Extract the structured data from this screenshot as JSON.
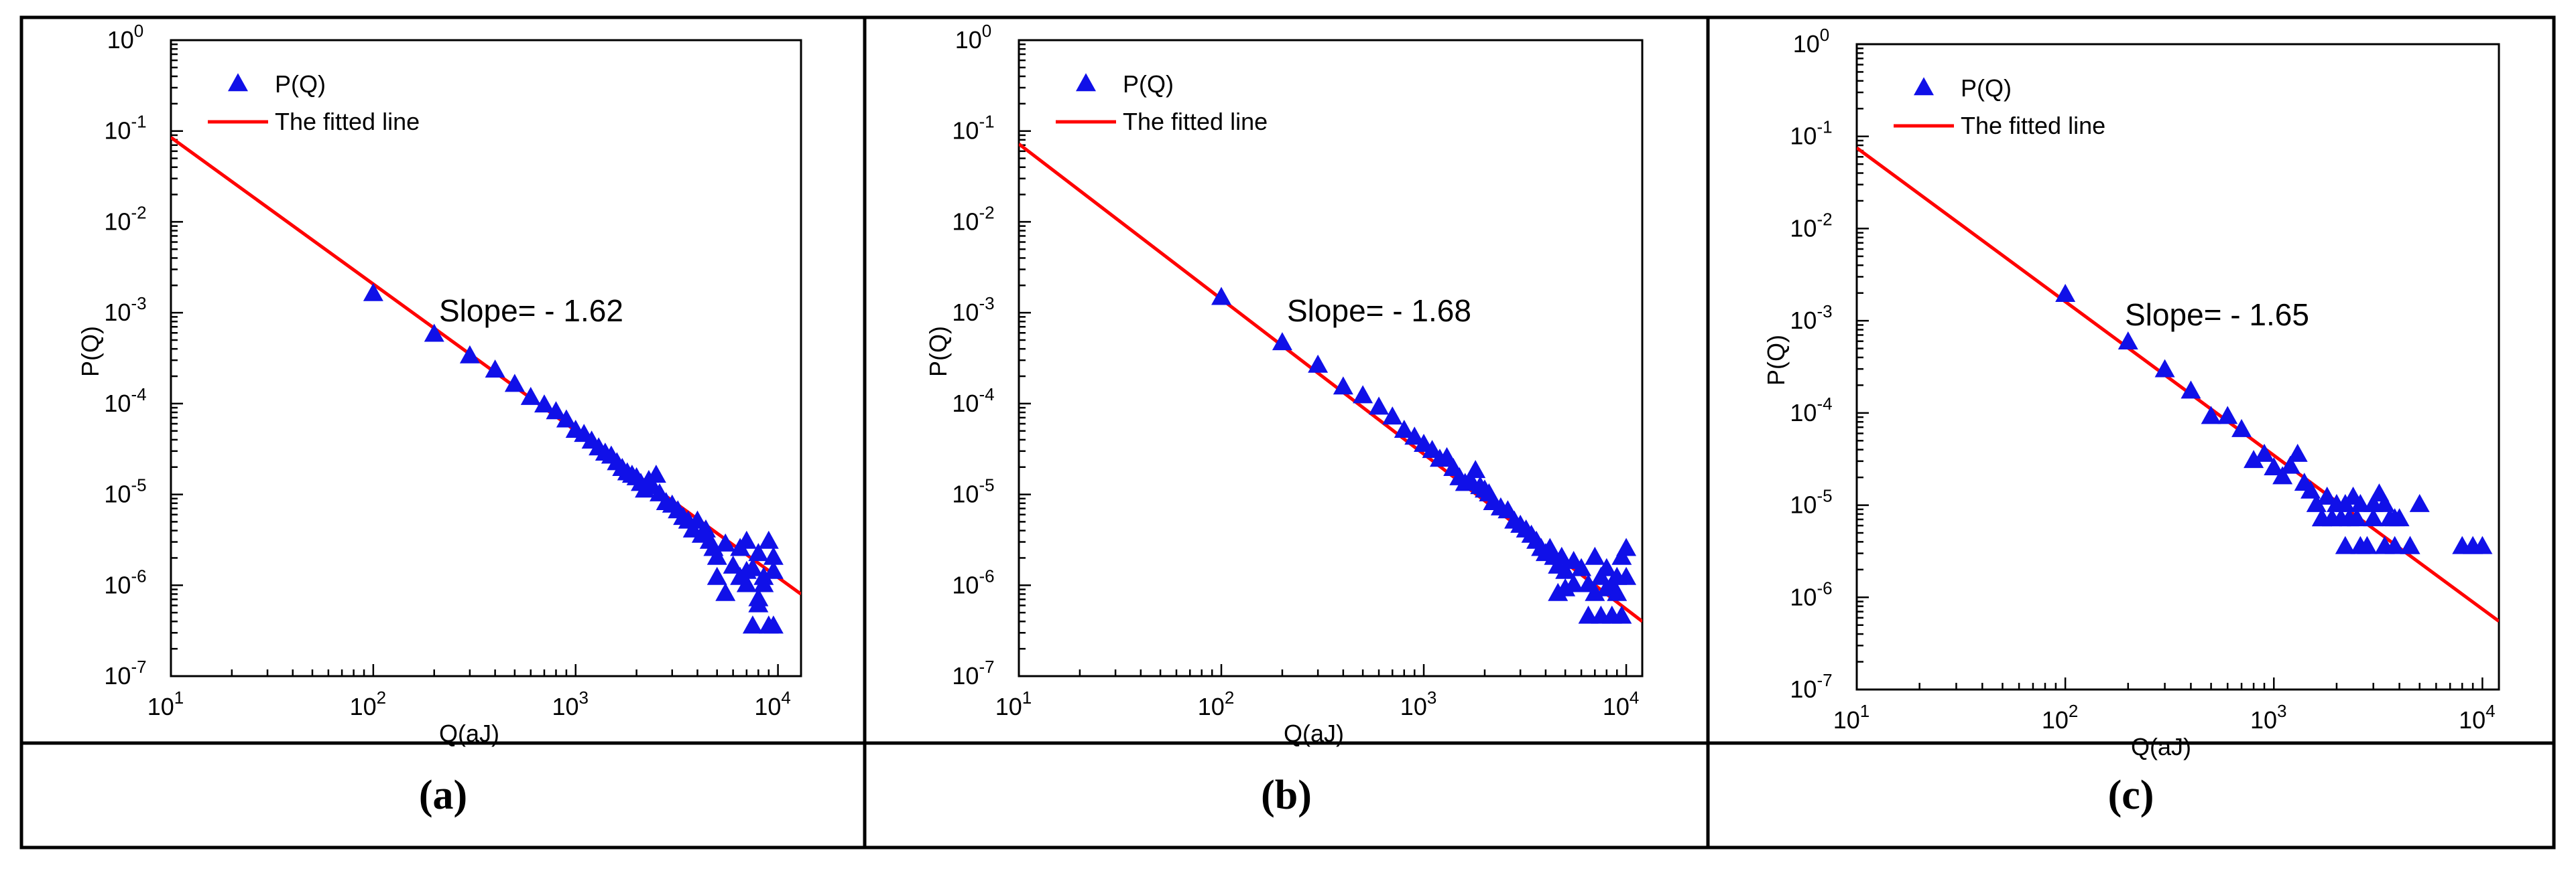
{
  "colors": {
    "marker": "#1010e8",
    "fit_line": "#ff0000",
    "axes": "#000000",
    "frame": "#000000",
    "background": "#ffffff"
  },
  "chart_data": [
    {
      "type": "scatter",
      "panel": "a",
      "caption": "(a)",
      "xlabel": "Q(aJ)",
      "ylabel": "P(Q)",
      "xscale": "log",
      "yscale": "log",
      "xlim": [
        10,
        13000
      ],
      "ylim": [
        1e-07,
        1
      ],
      "x_ticks": [
        {
          "base": "10",
          "exp": "1"
        },
        {
          "base": "10",
          "exp": "2"
        },
        {
          "base": "10",
          "exp": "3"
        },
        {
          "base": "10",
          "exp": "4"
        }
      ],
      "y_ticks": [
        {
          "base": "10",
          "exp": "-7"
        },
        {
          "base": "10",
          "exp": "-6"
        },
        {
          "base": "10",
          "exp": "-5"
        },
        {
          "base": "10",
          "exp": "-4"
        },
        {
          "base": "10",
          "exp": "-3"
        },
        {
          "base": "10",
          "exp": "-2"
        },
        {
          "base": "10",
          "exp": "-1"
        },
        {
          "base": "10",
          "exp": "0"
        }
      ],
      "legend": [
        {
          "label": "P(Q)",
          "marker": "triangle"
        },
        {
          "label": "The fitted line",
          "marker": "line"
        }
      ],
      "legend_position": "top-left",
      "annotation": "Slope= - 1.62",
      "fit": {
        "slope": -1.62,
        "points": [
          [
            10,
            0.085
          ],
          [
            13000,
            8e-07
          ]
        ]
      },
      "series": [
        {
          "name": "P(Q)",
          "x": [
            100,
            200,
            300,
            400,
            500,
            600,
            700,
            800,
            900,
            1000,
            1100,
            1200,
            1300,
            1400,
            1500,
            1600,
            1700,
            1800,
            1900,
            2000,
            2100,
            2200,
            2300,
            2400,
            2500,
            2600,
            2800,
            3000,
            3200,
            3400,
            3600,
            3800,
            4000,
            4200,
            4400,
            4600,
            4800,
            5000,
            5500,
            6000,
            6500,
            7000,
            7500,
            8000,
            8500,
            9000,
            9500,
            5000,
            5500,
            6500,
            7000,
            7500,
            8000,
            8500,
            9000,
            9500,
            7000,
            8000,
            9500
          ],
          "y": [
            0.0016,
            0.00057,
            0.00033,
            0.00023,
            0.00016,
            0.000115,
            9.5e-05,
            8e-05,
            6.5e-05,
            5e-05,
            4.5e-05,
            3.8e-05,
            3.2e-05,
            2.8e-05,
            2.6e-05,
            2.2e-05,
            1.9e-05,
            1.7e-05,
            1.6e-05,
            1.5e-05,
            1.3e-05,
            1.1e-05,
            1.4e-05,
            1.2e-05,
            1.6e-05,
            1e-05,
            8e-06,
            7.5e-06,
            6.5e-06,
            5.5e-06,
            5e-06,
            4e-06,
            5e-06,
            3.5e-06,
            4e-06,
            3e-06,
            2.5e-06,
            2e-06,
            2.8e-06,
            1.6e-06,
            2.5e-06,
            3e-06,
            1.5e-06,
            2.2e-06,
            1.2e-06,
            3e-06,
            2e-06,
            1.2e-06,
            8e-07,
            1.2e-06,
            1.4e-06,
            3.5e-07,
            7e-07,
            1e-06,
            3.5e-07,
            1.4e-06,
            1e-06,
            6e-07,
            3.5e-07
          ]
        }
      ]
    },
    {
      "type": "scatter",
      "panel": "b",
      "caption": "(b)",
      "xlabel": "Q(aJ)",
      "ylabel": "P(Q)",
      "xscale": "log",
      "yscale": "log",
      "xlim": [
        10,
        12000
      ],
      "ylim": [
        1e-07,
        1
      ],
      "x_ticks": [
        {
          "base": "10",
          "exp": "1"
        },
        {
          "base": "10",
          "exp": "2"
        },
        {
          "base": "10",
          "exp": "3"
        },
        {
          "base": "10",
          "exp": "4"
        }
      ],
      "y_ticks": [
        {
          "base": "10",
          "exp": "-7"
        },
        {
          "base": "10",
          "exp": "-6"
        },
        {
          "base": "10",
          "exp": "-5"
        },
        {
          "base": "10",
          "exp": "-4"
        },
        {
          "base": "10",
          "exp": "-3"
        },
        {
          "base": "10",
          "exp": "-2"
        },
        {
          "base": "10",
          "exp": "-1"
        },
        {
          "base": "10",
          "exp": "0"
        }
      ],
      "legend": [
        {
          "label": "P(Q)",
          "marker": "triangle"
        },
        {
          "label": "The fitted line",
          "marker": "line"
        }
      ],
      "legend_position": "top-left",
      "annotation": "Slope= - 1.68",
      "fit": {
        "slope": -1.68,
        "points": [
          [
            10,
            0.072
          ],
          [
            12000,
            4e-07
          ]
        ]
      },
      "series": [
        {
          "name": "P(Q)",
          "x": [
            100,
            200,
            300,
            400,
            500,
            600,
            700,
            800,
            900,
            1000,
            1100,
            1200,
            1300,
            1400,
            1500,
            1600,
            1700,
            1800,
            1900,
            2000,
            2100,
            2200,
            2400,
            2600,
            2800,
            3000,
            3200,
            3400,
            3600,
            3800,
            4000,
            4200,
            4400,
            4600,
            4800,
            5000,
            5500,
            6000,
            6500,
            7000,
            7500,
            8000,
            8500,
            9000,
            9500,
            10000,
            4600,
            5000,
            5500,
            6500,
            7000,
            7500,
            8000,
            8500,
            9000,
            9500,
            10000
          ],
          "y": [
            0.00145,
            0.00046,
            0.00026,
            0.00015,
            0.00012,
            9e-05,
            7e-05,
            5e-05,
            4.2e-05,
            3.5e-05,
            3e-05,
            2.4e-05,
            2.5e-05,
            1.9e-05,
            1.5e-05,
            1.3e-05,
            1.4e-05,
            1.8e-05,
            1.2e-05,
            1.1e-05,
            1e-05,
            8e-06,
            7e-06,
            6.5e-06,
            5e-06,
            4.5e-06,
            4e-06,
            3.5e-06,
            3e-06,
            2.5e-06,
            2.2e-06,
            2.5e-06,
            2e-06,
            1.6e-06,
            2e-06,
            1.4e-06,
            1.8e-06,
            1.5e-06,
            1e-06,
            2e-06,
            1.2e-06,
            1.5e-06,
            1e-06,
            1.2e-06,
            2e-06,
            2.5e-06,
            8e-07,
            9e-07,
            1e-06,
            4.5e-07,
            8e-07,
            4.5e-07,
            9e-07,
            4.5e-07,
            8e-07,
            4.5e-07,
            1.2e-06
          ]
        }
      ]
    },
    {
      "type": "scatter",
      "panel": "c",
      "caption": "(c)",
      "xlabel": "Q(aJ)",
      "ylabel": "P(Q)",
      "xscale": "log",
      "yscale": "log",
      "xlim": [
        10,
        12000
      ],
      "ylim": [
        1e-07,
        1
      ],
      "x_ticks": [
        {
          "base": "10",
          "exp": "1"
        },
        {
          "base": "10",
          "exp": "2"
        },
        {
          "base": "10",
          "exp": "3"
        },
        {
          "base": "10",
          "exp": "4"
        }
      ],
      "y_ticks": [
        {
          "base": "10",
          "exp": "-7"
        },
        {
          "base": "10",
          "exp": "-6"
        },
        {
          "base": "10",
          "exp": "-5"
        },
        {
          "base": "10",
          "exp": "-4"
        },
        {
          "base": "10",
          "exp": "-3"
        },
        {
          "base": "10",
          "exp": "-2"
        },
        {
          "base": "10",
          "exp": "-1"
        },
        {
          "base": "10",
          "exp": "0"
        }
      ],
      "legend": [
        {
          "label": "P(Q)",
          "marker": "triangle"
        },
        {
          "label": "The fitted line",
          "marker": "line"
        }
      ],
      "legend_position": "top-left",
      "annotation": "Slope= - 1.65",
      "fit": {
        "slope": -1.65,
        "points": [
          [
            10,
            0.075
          ],
          [
            12000,
            5.5e-07
          ]
        ]
      },
      "series": [
        {
          "name": "P(Q)",
          "x": [
            100,
            200,
            300,
            400,
            500,
            600,
            700,
            800,
            900,
            1000,
            1100,
            1200,
            1300,
            1400,
            1500,
            1600,
            1700,
            1800,
            1900,
            2000,
            2100,
            2200,
            2300,
            2400,
            2500,
            2600,
            2800,
            3000,
            3200,
            3400,
            3600,
            3800,
            4000,
            4500,
            5000,
            8000,
            9000,
            10000,
            1700,
            2200,
            2600,
            3000,
            3400,
            3800,
            4500
          ],
          "y": [
            0.0019,
            0.00058,
            0.00029,
            0.00017,
            9e-05,
            9e-05,
            6.5e-05,
            3e-05,
            3.5e-05,
            2.5e-05,
            2e-05,
            2.6e-05,
            3.5e-05,
            1.7e-05,
            1.4e-05,
            1e-05,
            7e-06,
            1.2e-05,
            7e-06,
            1e-05,
            7e-06,
            1e-05,
            7e-06,
            1.2e-05,
            7e-06,
            1e-05,
            3.5e-06,
            7e-06,
            1.3e-05,
            1e-05,
            7e-06,
            3.5e-06,
            7e-06,
            3.5e-06,
            1e-05,
            3.5e-06,
            3.5e-06,
            3.5e-06,
            7e-06,
            3.5e-06,
            3.5e-06,
            1e-05,
            3.5e-06,
            7e-06,
            3.5e-06
          ]
        }
      ]
    }
  ]
}
